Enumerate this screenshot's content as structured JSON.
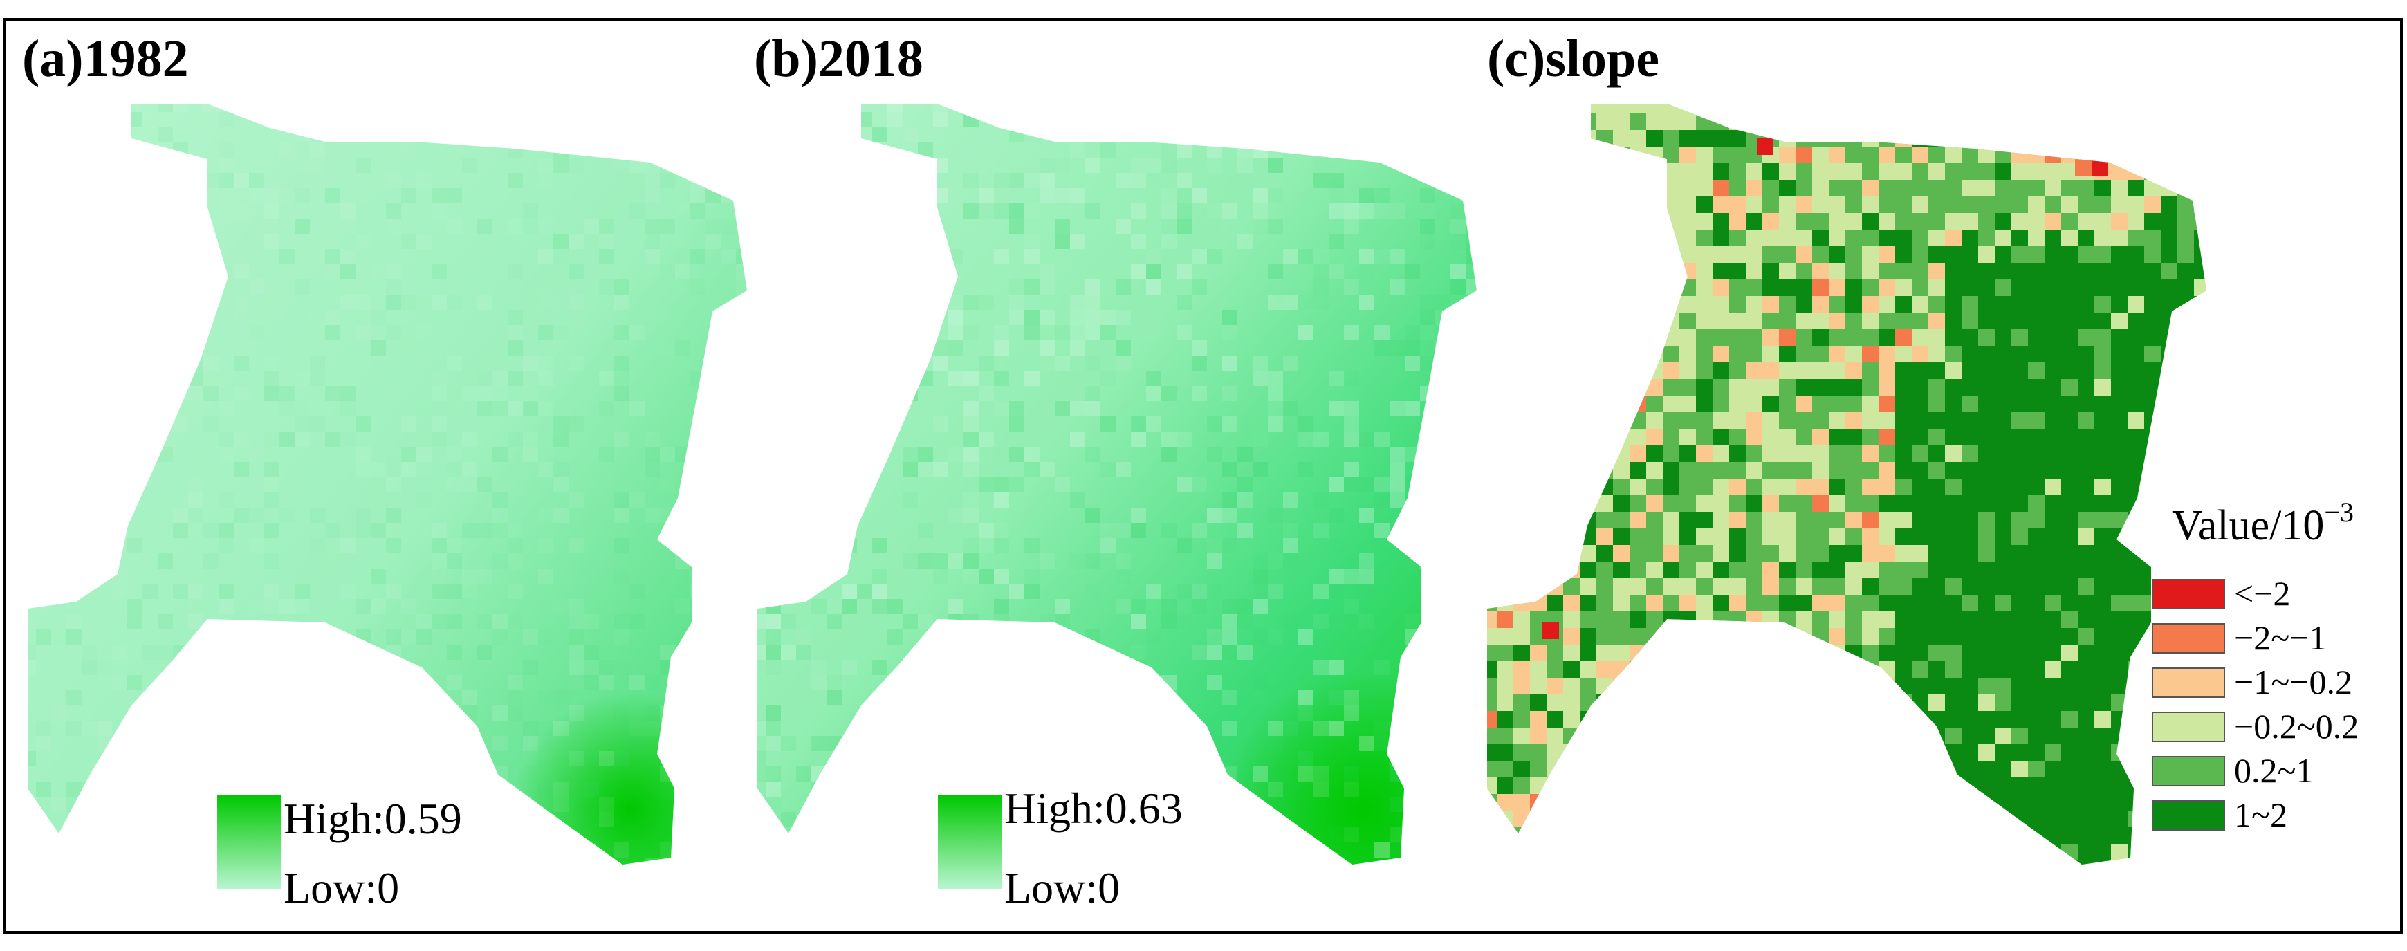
{
  "panels": [
    {
      "label": "(a)1982",
      "ramp": {
        "high_label": "High:0.59",
        "low_label": "Low:0",
        "high_color": "#00c800",
        "low_color": "#b8f5d0"
      }
    },
    {
      "label": "(b)2018",
      "ramp": {
        "high_label": "High:0.63",
        "low_label": "Low:0",
        "high_color": "#00c800",
        "low_color": "#b8f5d0"
      }
    },
    {
      "label": "(c)slope",
      "legend": {
        "title": "Value/10",
        "title_exponent": "−3",
        "classes": [
          {
            "label": "<−2",
            "color": "#e0191b"
          },
          {
            "label": "−2~−1",
            "color": "#f47a4b"
          },
          {
            "label": "−1~−0.2",
            "color": "#fbc88f"
          },
          {
            "label": "−0.2~0.2",
            "color": "#cfe8a0"
          },
          {
            "label": "0.2~1",
            "color": "#5bb850"
          },
          {
            "label": "1~2",
            "color": "#0a8a12"
          }
        ]
      }
    }
  ],
  "colors": {
    "frame": "#000000",
    "map_low": "#b8f5d0",
    "map_mid": "#7eeaa7",
    "map_high": "#00c800"
  }
}
